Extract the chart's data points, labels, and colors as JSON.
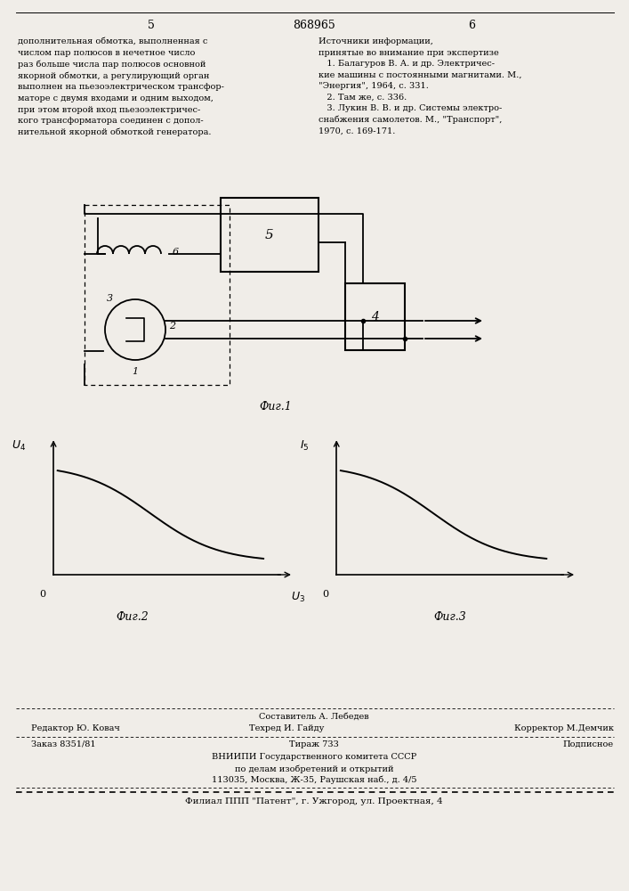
{
  "bg_color": "#f0ede8",
  "page_width": 7.07,
  "page_height": 10.0,
  "top_text_left": "дополнительная обмотка, выполненная с\nчислом пар полюсов в нечетное число\nраз больше числа пар полюсов основной\nякорной обмотки, а регулирующий орган\nвыполнен на пьезоэлектрическом трансфор-\nматоре с двумя входами и одним выходом,\nпри этом второй вход пьезоэлектричес-\nкого трансформатора соединен с допол-\nнительной якорной обмоткой генератора.",
  "top_text_right": "Источники информации,\nпринятые во внимание при экспертизе\n   1. Балагуров В. А. и др. Электричес-\nкие машины с постоянными магнитами. М.,\n\"Энергия\", 1964, с. 331.\n   2. Там же, с. 336.\n   3. Лукин В. В. и др. Системы электро-\nснабжения самолетов. М., \"Транспорт\",\n1970, с. 169-171.",
  "page_num_left": "5",
  "page_num_center": "868965",
  "page_num_right": "6",
  "fig1_caption": "Фиг.1",
  "fig2_caption": "Фиг.2",
  "fig3_caption": "Фиг.3",
  "fig2_ylabel": "U4",
  "fig2_xlabel": "U3",
  "fig3_ylabel": "I5",
  "footer_line1": "Составитель А. Лебедев",
  "footer_line2_left": "Редактор Ю. Ковач",
  "footer_line2_mid": "Техред И. Гайду",
  "footer_line2_right": "Корректор М.Демчик",
  "footer_line3_left": "Заказ 8351/81",
  "footer_line3_mid": "Тираж 733",
  "footer_line3_right": "Подписное",
  "footer_line4": "ВНИИПИ Государственного комитета СССР",
  "footer_line5": "по делам изобретений и открытий",
  "footer_line6": "113035, Москва, Ж-35, Раушская наб., д. 4/5",
  "footer_line7": "Филиал ППП \"Патент\", г. Ужгород, ул. Проектная, 4"
}
